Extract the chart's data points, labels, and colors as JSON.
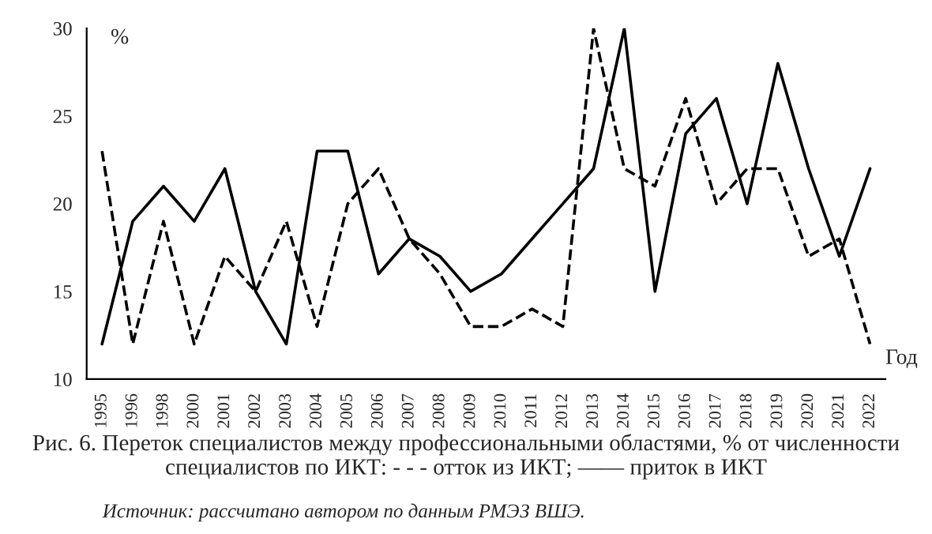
{
  "chart_data": {
    "type": "line",
    "title": "Рис. 6. Переток специалистов между профессиональными областями, % от численности специалистов по ИКТ: - - - отток из ИКТ; —— приток в ИКТ",
    "xlabel": "Год",
    "ylabel": "%",
    "categories": [
      "1995",
      "1996",
      "1998",
      "2000",
      "2001",
      "2002",
      "2003",
      "2004",
      "2005",
      "2006",
      "2007",
      "2008",
      "2009",
      "2010",
      "2011",
      "2012",
      "2013",
      "2014",
      "2015",
      "2016",
      "2017",
      "2018",
      "2019",
      "2020",
      "2021",
      "2022"
    ],
    "series": [
      {
        "color": "#000000",
        "line_style": "dashed",
        "values": [
          23,
          12,
          19,
          12,
          17,
          15,
          19,
          13,
          20,
          22,
          18,
          16,
          13,
          13,
          14,
          13,
          30,
          22,
          21,
          26,
          20,
          22,
          22,
          17,
          18,
          12
        ]
      },
      {
        "color": "#000000",
        "line_style": "solid",
        "values": [
          12,
          19,
          21,
          19,
          22,
          15,
          12,
          23,
          23,
          16,
          18,
          17,
          15,
          16,
          18,
          20,
          22,
          30,
          15,
          24,
          26,
          20,
          28,
          22,
          17,
          22
        ]
      }
    ],
    "ylim": [
      10,
      30
    ],
    "yticks": [
      10,
      15,
      20,
      25,
      30
    ],
    "grid": false,
    "legend": false,
    "annotations": [
      "Источник: рассчитано автором по данным РМЭЗ ВШЭ."
    ]
  }
}
